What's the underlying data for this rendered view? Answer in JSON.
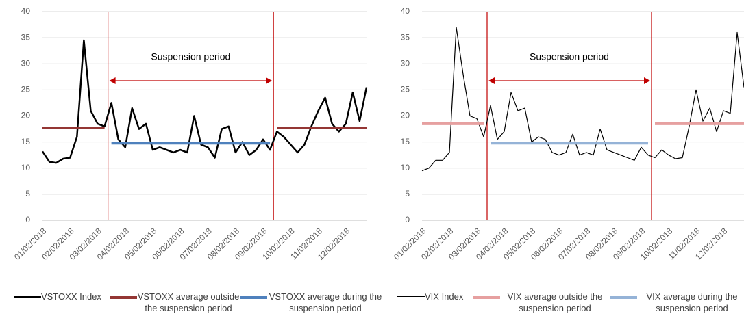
{
  "chart_data": [
    {
      "type": "line",
      "annotation": "Suspension period",
      "categories": [
        "01/02/2018",
        null,
        null,
        null,
        "02/02/2018",
        null,
        null,
        null,
        "03/02/2018",
        null,
        null,
        null,
        "04/02/2018",
        null,
        null,
        null,
        "05/02/2018",
        null,
        null,
        null,
        "06/02/2018",
        null,
        null,
        null,
        "07/02/2018",
        null,
        null,
        null,
        "08/02/2018",
        null,
        null,
        null,
        "09/02/2018",
        null,
        null,
        null,
        "10/02/2018",
        null,
        null,
        null,
        "11/02/2018",
        null,
        null,
        null,
        "12/02/2018",
        null,
        null,
        null
      ],
      "series": [
        {
          "name": "VSTOXX Index",
          "color": "#000000",
          "width": 2.5,
          "values": [
            13.2,
            11.2,
            11.0,
            11.8,
            12.0,
            16.0,
            34.5,
            21.0,
            18.5,
            18.0,
            22.5,
            15.5,
            14.0,
            21.5,
            17.5,
            18.5,
            13.5,
            14.0,
            13.5,
            13.0,
            13.5,
            13.0,
            20.0,
            14.5,
            14.0,
            12.0,
            17.5,
            18.0,
            13.0,
            15.0,
            12.5,
            13.5,
            15.5,
            13.5,
            17.0,
            16.0,
            14.5,
            13.0,
            14.5,
            18.0,
            21.0,
            23.5,
            18.5,
            17.0,
            18.5,
            24.5,
            19.0,
            25.5
          ]
        },
        {
          "name": "VSTOXX average outside the suspension period",
          "color": "#943634",
          "width": 4,
          "values": [
            17.7,
            17.7,
            17.7,
            17.7,
            17.7,
            17.7,
            17.7,
            17.7,
            17.7,
            17.7,
            null,
            null,
            null,
            null,
            null,
            null,
            null,
            null,
            null,
            null,
            null,
            null,
            null,
            null,
            null,
            null,
            null,
            null,
            null,
            null,
            null,
            null,
            null,
            null,
            17.7,
            17.7,
            17.7,
            17.7,
            17.7,
            17.7,
            17.7,
            17.7,
            17.7,
            17.7,
            17.7,
            17.7,
            17.7,
            17.7
          ]
        },
        {
          "name": "VSTOXX average during the suspension period",
          "color": "#4f81bd",
          "width": 4,
          "values": [
            null,
            null,
            null,
            null,
            null,
            null,
            null,
            null,
            null,
            null,
            14.8,
            14.8,
            14.8,
            14.8,
            14.8,
            14.8,
            14.8,
            14.8,
            14.8,
            14.8,
            14.8,
            14.8,
            14.8,
            14.8,
            14.8,
            14.8,
            14.8,
            14.8,
            14.8,
            14.8,
            14.8,
            14.8,
            14.8,
            14.8,
            null,
            null,
            null,
            null,
            null,
            null,
            null,
            null,
            null,
            null,
            null,
            null,
            null,
            null
          ]
        }
      ],
      "ylim": [
        0,
        40
      ],
      "yticks": [
        0,
        5,
        10,
        15,
        20,
        25,
        30,
        35,
        40
      ],
      "grid": true
    },
    {
      "type": "line",
      "annotation": "Suspension period",
      "categories": [
        "01/02/2018",
        null,
        null,
        null,
        "02/02/2018",
        null,
        null,
        null,
        "03/02/2018",
        null,
        null,
        null,
        "04/02/2018",
        null,
        null,
        null,
        "05/02/2018",
        null,
        null,
        null,
        "06/02/2018",
        null,
        null,
        null,
        "07/02/2018",
        null,
        null,
        null,
        "08/02/2018",
        null,
        null,
        null,
        "09/02/2018",
        null,
        null,
        null,
        "10/02/2018",
        null,
        null,
        null,
        "11/02/2018",
        null,
        null,
        null,
        "12/02/2018",
        null,
        null,
        null
      ],
      "series": [
        {
          "name": "VIX Index",
          "color": "#000000",
          "width": 1.2,
          "values": [
            9.5,
            10.0,
            11.5,
            11.5,
            13.0,
            37.0,
            28.0,
            20.0,
            19.5,
            16.0,
            22.0,
            15.5,
            17.0,
            24.5,
            21.0,
            21.5,
            15.0,
            16.0,
            15.5,
            13.0,
            12.5,
            13.0,
            16.5,
            12.5,
            13.0,
            12.5,
            17.5,
            13.5,
            13.0,
            12.5,
            12.0,
            11.5,
            14.0,
            12.5,
            12.0,
            13.5,
            12.5,
            11.8,
            12.0,
            18.0,
            25.0,
            19.0,
            21.5,
            17.0,
            21.0,
            20.5,
            36.0,
            25.5
          ]
        },
        {
          "name": "VIX average outside the suspension period",
          "color": "#e6a0a0",
          "width": 4,
          "values": [
            18.5,
            18.5,
            18.5,
            18.5,
            18.5,
            18.5,
            18.5,
            18.5,
            18.5,
            18.5,
            null,
            null,
            null,
            null,
            null,
            null,
            null,
            null,
            null,
            null,
            null,
            null,
            null,
            null,
            null,
            null,
            null,
            null,
            null,
            null,
            null,
            null,
            null,
            null,
            18.5,
            18.5,
            18.5,
            18.5,
            18.5,
            18.5,
            18.5,
            18.5,
            18.5,
            18.5,
            18.5,
            18.5,
            18.5,
            18.5
          ]
        },
        {
          "name": "VIX average during the suspension period",
          "color": "#95b3d7",
          "width": 4,
          "values": [
            null,
            null,
            null,
            null,
            null,
            null,
            null,
            null,
            null,
            null,
            14.8,
            14.8,
            14.8,
            14.8,
            14.8,
            14.8,
            14.8,
            14.8,
            14.8,
            14.8,
            14.8,
            14.8,
            14.8,
            14.8,
            14.8,
            14.8,
            14.8,
            14.8,
            14.8,
            14.8,
            14.8,
            14.8,
            14.8,
            14.8,
            null,
            null,
            null,
            null,
            null,
            null,
            null,
            null,
            null,
            null,
            null,
            null,
            null,
            null
          ]
        }
      ],
      "ylim": [
        0,
        40
      ],
      "yticks": [
        0,
        5,
        10,
        15,
        20,
        25,
        30,
        35,
        40
      ],
      "grid": true
    }
  ]
}
